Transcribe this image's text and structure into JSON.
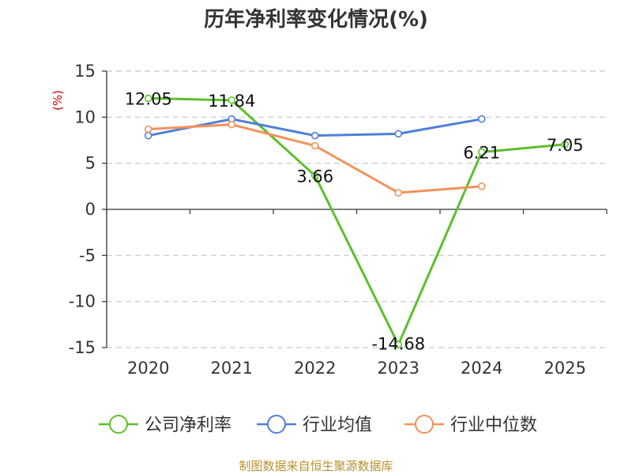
{
  "title": "历年净利率变化情况(%)",
  "source": "制图数据来自恒生聚源数据库",
  "chart_data": {
    "type": "line",
    "title": "历年净利率变化情况(%)",
    "ylabel": "(%)",
    "xlabel": "",
    "categories": [
      "2020",
      "2021",
      "2022",
      "2023",
      "2024",
      "2025"
    ],
    "ylim": [
      -15,
      15
    ],
    "yticks": [
      15,
      10,
      5,
      0,
      -5,
      -10,
      -15
    ],
    "grid": true,
    "legend_position": "bottom",
    "series": [
      {
        "name": "公司净利率",
        "color": "#5cc02a",
        "values": [
          12.05,
          11.84,
          3.66,
          -14.68,
          6.21,
          7.05
        ],
        "labels": [
          "12.05",
          "11.84",
          "3.66",
          "-14.68",
          "6.21",
          "7.05"
        ]
      },
      {
        "name": "行业均值",
        "color": "#4f7fd8",
        "values": [
          8.0,
          9.8,
          8.0,
          8.2,
          9.8,
          null
        ]
      },
      {
        "name": "行业中位数",
        "color": "#f39158",
        "values": [
          8.7,
          9.2,
          6.9,
          1.8,
          2.5,
          null
        ]
      }
    ]
  }
}
